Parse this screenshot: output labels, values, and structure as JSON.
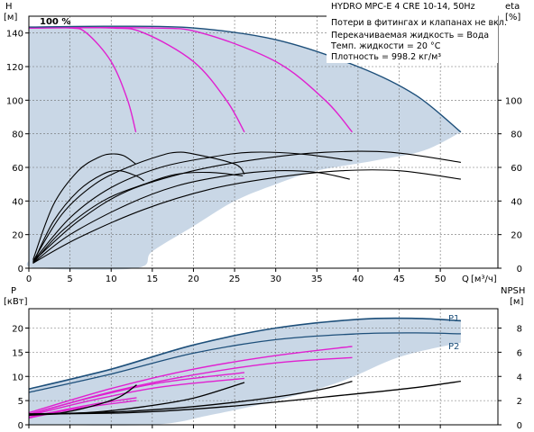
{
  "chart_data": [
    {
      "type": "line",
      "title": "HYDRO MPC-E 4 CRE 10-14, 50Hz",
      "info_lines": [
        "Потери в фитингах и клапанах не вкл.",
        "Перекачиваемая жидкость = Вода",
        "Темп. жидкости = 20 °C",
        "Плотность = 998.2 кг/м³"
      ],
      "speed_label": "100 %",
      "xlabel": "Q",
      "xunit": "[м³/ч]",
      "xlim": [
        0,
        57
      ],
      "xticks": [
        0,
        5,
        10,
        15,
        20,
        25,
        30,
        35,
        40,
        45,
        50
      ],
      "ylabel_left": "H",
      "yunit_left": "[м]",
      "ylim_left": [
        0,
        150
      ],
      "yticks_left": [
        0,
        20,
        40,
        60,
        80,
        100,
        120,
        140
      ],
      "ylabel_right": "eta",
      "yunit_right": "[%]",
      "ylim_right": [
        0,
        150
      ],
      "yticks_right": [
        0,
        20,
        40,
        60,
        80,
        100
      ],
      "colors": {
        "envelope_fill": "#c9d7e6",
        "envelope_line": "#1d4f7a",
        "pump_curve": "#e020d0",
        "eta_curve": "#000000"
      },
      "envelope": {
        "upper": [
          [
            0,
            143.5
          ],
          [
            10,
            144
          ],
          [
            20,
            143
          ],
          [
            30,
            136
          ],
          [
            40,
            120
          ],
          [
            47,
            103
          ],
          [
            52.5,
            81
          ]
        ],
        "lower": [
          [
            52.5,
            81
          ],
          [
            48,
            70
          ],
          [
            42,
            64
          ],
          [
            35,
            58
          ],
          [
            30,
            50
          ],
          [
            25,
            40
          ],
          [
            20,
            25
          ],
          [
            15,
            10
          ],
          [
            13,
            0
          ],
          [
            1,
            0
          ],
          [
            0,
            5
          ]
        ]
      },
      "series": [
        {
          "type": "pump",
          "values": [
            [
              0,
              143
            ],
            [
              5,
              143
            ],
            [
              7,
              140
            ],
            [
              10,
              123
            ],
            [
              12,
              100
            ],
            [
              13,
              81
            ]
          ]
        },
        {
          "type": "pump",
          "values": [
            [
              0,
              143
            ],
            [
              10,
              143
            ],
            [
              14,
              140
            ],
            [
              20,
              123
            ],
            [
              24,
              100
            ],
            [
              26.2,
              81
            ]
          ]
        },
        {
          "type": "pump",
          "values": [
            [
              0,
              143
            ],
            [
              15,
              143
            ],
            [
              21,
              140
            ],
            [
              30,
              123
            ],
            [
              36,
              100
            ],
            [
              39.3,
              81
            ]
          ]
        },
        {
          "type": "eta",
          "values": [
            [
              0.5,
              5
            ],
            [
              3,
              38
            ],
            [
              6,
              58
            ],
            [
              8.5,
              66
            ],
            [
              10,
              68
            ],
            [
              11.5,
              67
            ],
            [
              13,
              62
            ]
          ]
        },
        {
          "type": "eta",
          "values": [
            [
              0.5,
              3
            ],
            [
              3,
              28
            ],
            [
              6,
              46
            ],
            [
              9,
              56
            ],
            [
              11,
              58
            ],
            [
              13,
              55
            ],
            [
              14,
              52
            ]
          ]
        },
        {
          "type": "eta",
          "values": [
            [
              0.5,
              4
            ],
            [
              4,
              32
            ],
            [
              8,
              50
            ],
            [
              12,
              60
            ],
            [
              16,
              67
            ],
            [
              18,
              69
            ],
            [
              20,
              68
            ],
            [
              25,
              62
            ],
            [
              26.2,
              56
            ]
          ]
        },
        {
          "type": "eta",
          "values": [
            [
              0.5,
              3
            ],
            [
              4,
              22
            ],
            [
              9,
              40
            ],
            [
              14,
              50
            ],
            [
              18,
              56
            ],
            [
              22,
              57
            ],
            [
              26,
              55
            ]
          ]
        },
        {
          "type": "eta",
          "values": [
            [
              0.5,
              4
            ],
            [
              5,
              30
            ],
            [
              10,
              48
            ],
            [
              16,
              60
            ],
            [
              22,
              66
            ],
            [
              27,
              69
            ],
            [
              33,
              68
            ],
            [
              39.3,
              64
            ]
          ]
        },
        {
          "type": "eta",
          "values": [
            [
              0.5,
              3
            ],
            [
              5,
              20
            ],
            [
              12,
              38
            ],
            [
              18,
              49
            ],
            [
              24,
              55
            ],
            [
              30,
              58
            ],
            [
              35,
              57
            ],
            [
              39,
              53
            ]
          ]
        },
        {
          "type": "eta",
          "values": [
            [
              0.5,
              4
            ],
            [
              6,
              28
            ],
            [
              12,
              46
            ],
            [
              20,
              58
            ],
            [
              28,
              65
            ],
            [
              36,
              69
            ],
            [
              44,
              69
            ],
            [
              52.5,
              63
            ]
          ]
        },
        {
          "type": "eta",
          "values": [
            [
              0.5,
              3
            ],
            [
              6,
              18
            ],
            [
              14,
              35
            ],
            [
              22,
              47
            ],
            [
              30,
              54
            ],
            [
              38,
              58
            ],
            [
              45,
              58
            ],
            [
              52.5,
              53
            ]
          ]
        }
      ]
    },
    {
      "type": "line",
      "xlim": [
        0,
        57
      ],
      "xticks": [
        0,
        5,
        10,
        15,
        20,
        25,
        30,
        35,
        40,
        45,
        50
      ],
      "ylabel_left": "P",
      "yunit_left": "[кВт]",
      "ylim_left": [
        0,
        24
      ],
      "yticks_left": [
        0,
        5,
        10,
        15,
        20
      ],
      "ylabel_right": "NPSH",
      "yunit_right": "[м]",
      "ylim_right": [
        0,
        9.6
      ],
      "yticks_right": [
        0,
        2,
        4,
        6,
        8
      ],
      "series_labels": [
        "P1",
        "P2"
      ],
      "colors": {
        "envelope_fill": "#c9d7e6",
        "envelope_line": "#1d4f7a",
        "pump_curve": "#e020d0",
        "npsh_curve": "#000000"
      },
      "envelope": {
        "upper": [
          [
            0,
            7.4
          ],
          [
            10,
            11.5
          ],
          [
            20,
            16.5
          ],
          [
            30,
            20
          ],
          [
            40,
            21.8
          ],
          [
            47,
            22
          ],
          [
            52.5,
            21.5
          ]
        ],
        "lower": [
          [
            52.5,
            17
          ],
          [
            45,
            14
          ],
          [
            38,
            9
          ],
          [
            30,
            5
          ],
          [
            22,
            2
          ],
          [
            15,
            0
          ],
          [
            0,
            0
          ]
        ]
      },
      "series": [
        {
          "type": "P1",
          "name": "P1",
          "values": [
            [
              0,
              7.4
            ],
            [
              10,
              11.5
            ],
            [
              20,
              16.5
            ],
            [
              30,
              20
            ],
            [
              40,
              21.8
            ],
            [
              47,
              22
            ],
            [
              52.5,
              21.5
            ]
          ]
        },
        {
          "type": "P2",
          "name": "P2",
          "values": [
            [
              0,
              6.7
            ],
            [
              10,
              10.5
            ],
            [
              20,
              14.8
            ],
            [
              30,
              17.6
            ],
            [
              40,
              18.8
            ],
            [
              47,
              19
            ],
            [
              52.5,
              18.8
            ]
          ]
        },
        {
          "type": "pump",
          "values": [
            [
              0,
              1.6
            ],
            [
              4,
              3
            ],
            [
              8,
              4.3
            ],
            [
              13.1,
              5.6
            ]
          ]
        },
        {
          "type": "pump",
          "values": [
            [
              0,
              1.4
            ],
            [
              4,
              2.8
            ],
            [
              8,
              3.9
            ],
            [
              13.1,
              5
            ]
          ]
        },
        {
          "type": "pump",
          "values": [
            [
              0,
              2.2
            ],
            [
              8,
              5.8
            ],
            [
              16,
              8.7
            ],
            [
              26.2,
              10.8
            ]
          ]
        },
        {
          "type": "pump",
          "values": [
            [
              0,
              1.9
            ],
            [
              8,
              5.2
            ],
            [
              16,
              7.8
            ],
            [
              26.2,
              9.6
            ]
          ]
        },
        {
          "type": "pump",
          "values": [
            [
              0,
              2.5
            ],
            [
              10,
              7.5
            ],
            [
              20,
              11.5
            ],
            [
              30,
              14.3
            ],
            [
              39.3,
              16.2
            ]
          ]
        },
        {
          "type": "pump",
          "values": [
            [
              0,
              2.1
            ],
            [
              10,
              6.8
            ],
            [
              20,
              10.3
            ],
            [
              30,
              12.8
            ],
            [
              39.3,
              13.9
            ]
          ]
        },
        {
          "type": "npsh",
          "values": [
            [
              0,
              0.8
            ],
            [
              4,
              1
            ],
            [
              8,
              1.6
            ],
            [
              11,
              2.3
            ],
            [
              13.1,
              3.3
            ]
          ]
        },
        {
          "type": "npsh",
          "values": [
            [
              0,
              0.8
            ],
            [
              8,
              1.05
            ],
            [
              14,
              1.5
            ],
            [
              20,
              2.2
            ],
            [
              26.2,
              3.5
            ]
          ]
        },
        {
          "type": "npsh",
          "values": [
            [
              0,
              0.9
            ],
            [
              10,
              1.05
            ],
            [
              20,
              1.5
            ],
            [
              30,
              2.3
            ],
            [
              36,
              3
            ],
            [
              39.3,
              3.6
            ]
          ]
        },
        {
          "type": "npsh",
          "values": [
            [
              0,
              0.9
            ],
            [
              12,
              1
            ],
            [
              24,
              1.5
            ],
            [
              36,
              2.3
            ],
            [
              46,
              3
            ],
            [
              52.5,
              3.6
            ]
          ]
        }
      ]
    }
  ]
}
